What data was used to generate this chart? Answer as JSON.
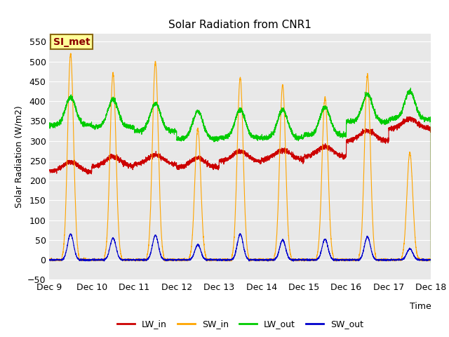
{
  "title": "Solar Radiation from CNR1",
  "ylabel": "Solar Radiation (W/m2)",
  "xlabel": "Time",
  "ylim": [
    -50,
    570
  ],
  "yticks": [
    -50,
    0,
    50,
    100,
    150,
    200,
    250,
    300,
    350,
    400,
    450,
    500,
    550
  ],
  "xlim": [
    0,
    9.0
  ],
  "xtick_positions": [
    0,
    1,
    2,
    3,
    4,
    5,
    6,
    7,
    8,
    9
  ],
  "xtick_labels": [
    "Dec 9",
    "Dec 10",
    "Dec 11",
    "Dec 12",
    "Dec 13",
    "Dec 14",
    "Dec 15",
    "Dec 16",
    "Dec 17",
    "Dec 18"
  ],
  "bg_color": "#e8e8e8",
  "grid_color": "#ffffff",
  "annotation_text": "SI_met",
  "annotation_bg": "#ffff99",
  "annotation_border": "#8b6914",
  "colors": {
    "LW_in": "#cc0000",
    "SW_in": "#ffa500",
    "LW_out": "#00cc00",
    "SW_out": "#0000cc"
  },
  "linewidth": 0.8,
  "figsize": [
    6.4,
    4.8
  ],
  "dpi": 100
}
